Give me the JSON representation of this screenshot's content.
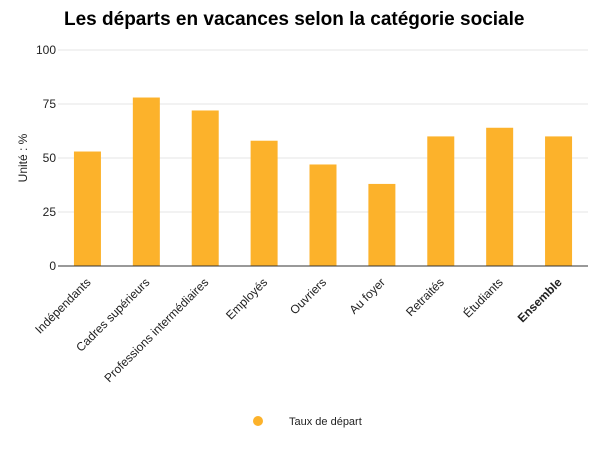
{
  "chart_data": {
    "type": "bar",
    "title": "Les départs en vacances selon la catégorie sociale",
    "ylabel": "Unité : %",
    "xlabel": "",
    "ylim": [
      0,
      100
    ],
    "yticks": [
      0,
      25,
      50,
      75,
      100
    ],
    "grid": true,
    "legend_position": "bottom",
    "categories": [
      "Indépendants",
      "Cadres supérieurs",
      "Professions intermédiaires",
      "Employés",
      "Ouvriers",
      "Au foyer",
      "Retraités",
      "Étudiants",
      "Ensemble"
    ],
    "bold_categories": [
      "Ensemble"
    ],
    "series": [
      {
        "name": "Taux de départ",
        "color": "#fcb22b",
        "values": [
          53,
          78,
          72,
          58,
          47,
          38,
          60,
          64,
          60
        ]
      }
    ]
  }
}
